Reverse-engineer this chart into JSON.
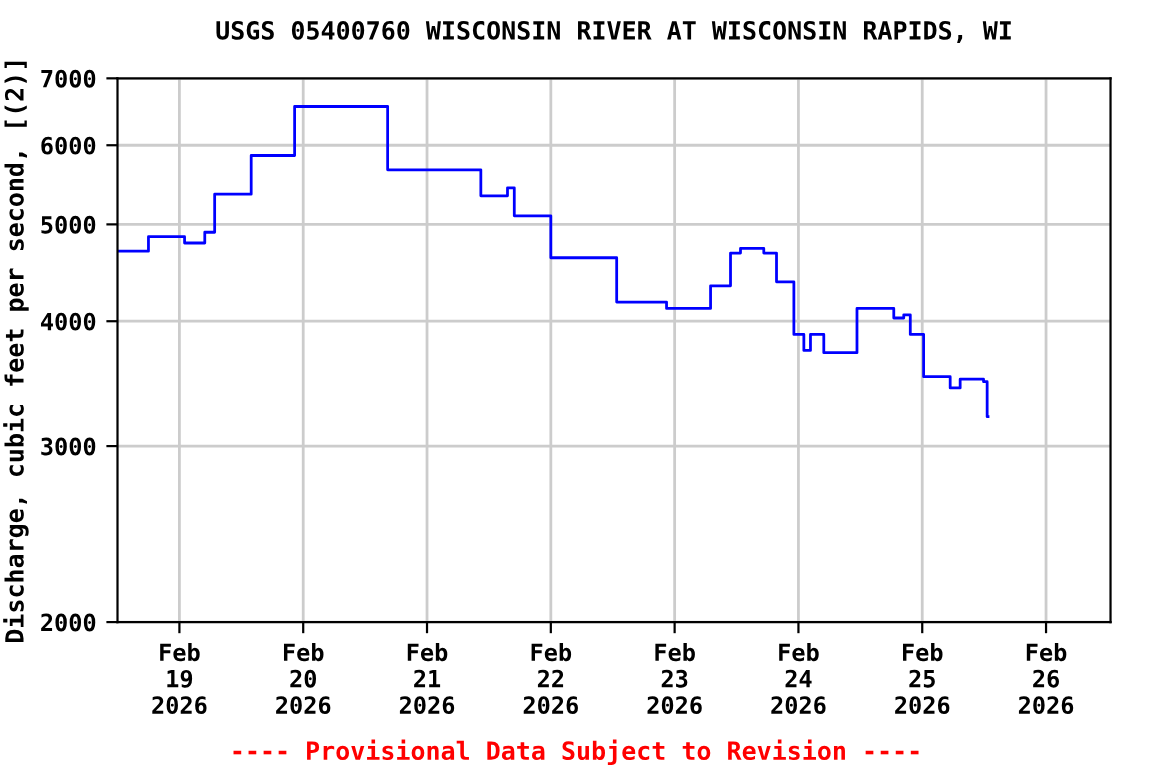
{
  "chart_data": {
    "type": "step",
    "title": "USGS 05400760 WISCONSIN RIVER AT WISCONSIN RAPIDS, WI",
    "ylabel": "Discharge, cubic feet per second, [(2)]",
    "annotations": [
      "---- Provisional Data Subject to Revision ----"
    ],
    "x": [
      "2026-02-18T12:10",
      "2026-02-18T18:00",
      "2026-02-19T01:00",
      "2026-02-19T04:55",
      "2026-02-19T06:50",
      "2026-02-19T13:55",
      "2026-02-19T22:20",
      "2026-02-20T16:22",
      "2026-02-21T10:26",
      "2026-02-21T15:36",
      "2026-02-21T16:55",
      "2026-02-22T00:00",
      "2026-02-22T12:46",
      "2026-02-22T22:26",
      "2026-02-23T06:58",
      "2026-02-23T10:50",
      "2026-02-23T12:46",
      "2026-02-23T17:17",
      "2026-02-23T19:45",
      "2026-02-23T23:07",
      "2026-02-24T01:03",
      "2026-02-24T02:20",
      "2026-02-24T04:55",
      "2026-02-24T11:21",
      "2026-02-24T18:29",
      "2026-02-24T20:25",
      "2026-02-24T21:41",
      "2026-02-25T00:16",
      "2026-02-25T05:25",
      "2026-02-25T07:21",
      "2026-02-25T11:53",
      "2026-02-25T12:35",
      "2026-02-25T12:45"
    ],
    "series": [
      {
        "color": "#0000ff",
        "values": [
          4700,
          4860,
          4790,
          4910,
          5360,
          5860,
          6560,
          5670,
          5340,
          5440,
          5100,
          4630,
          4180,
          4120,
          4340,
          4680,
          4730,
          4680,
          4380,
          3880,
          3740,
          3880,
          3720,
          4120,
          4030,
          4060,
          3880,
          3520,
          3430,
          3500,
          3480,
          3210,
          3210
        ]
      }
    ],
    "log": true,
    "ylim": [
      2000,
      7000
    ],
    "yticks": [
      2000,
      3000,
      4000,
      5000,
      6000,
      7000
    ],
    "xlim": [
      "2026-02-18T12:00",
      "2026-02-26T12:30"
    ],
    "xticks": [
      {
        "value": "2026-02-19",
        "label": "Feb\n19\n2026"
      },
      {
        "value": "2026-02-20",
        "label": "Feb\n20\n2026"
      },
      {
        "value": "2026-02-21",
        "label": "Feb\n21\n2026"
      },
      {
        "value": "2026-02-22",
        "label": "Feb\n22\n2026"
      },
      {
        "value": "2026-02-23",
        "label": "Feb\n23\n2026"
      },
      {
        "value": "2026-02-24",
        "label": "Feb\n24\n2026"
      },
      {
        "value": "2026-02-25",
        "label": "Feb\n25\n2026"
      },
      {
        "value": "2026-02-26",
        "label": "Feb\n26\n2026"
      }
    ],
    "grid": true
  }
}
